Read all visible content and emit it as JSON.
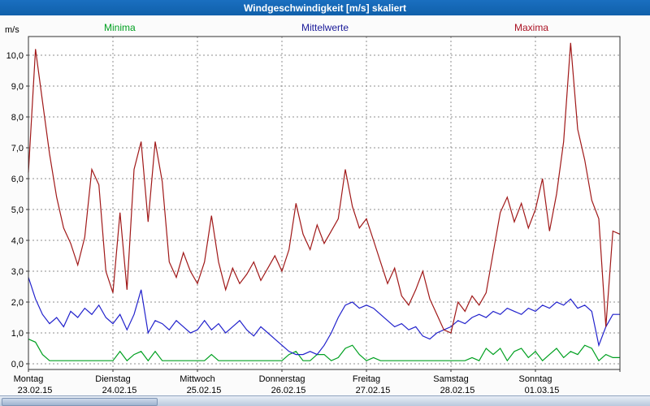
{
  "window": {
    "title": "Windgeschwindigkeit [m/s] skaliert"
  },
  "colors": {
    "titlebar": "#1060aa",
    "grid": "#8f8f8f",
    "plot_border": "#303030",
    "plot_background": "#ffffff",
    "minima": "#00a020",
    "mittelwerte": "#2222cc",
    "maxima": "#a01818",
    "legend_minima_text": "#00a020",
    "legend_mittelwerte_text": "#1a1a99",
    "legend_maxima_text": "#aa1122"
  },
  "axis": {
    "unit_label": "m/s",
    "y_ticks": [
      "0,0",
      "1,0",
      "2,0",
      "3,0",
      "4,0",
      "5,0",
      "6,0",
      "7,0",
      "8,0",
      "9,0",
      "10,0"
    ]
  },
  "chart_data": {
    "type": "line",
    "title": "Windgeschwindigkeit [m/s] skaliert",
    "xlabel": "",
    "ylabel": "m/s",
    "ylim": [
      0,
      10.6
    ],
    "grid": true,
    "legend_position": "top",
    "points_per_day": 12,
    "days": [
      {
        "name": "Montag",
        "date": "23.02.15"
      },
      {
        "name": "Dienstag",
        "date": "24.02.15"
      },
      {
        "name": "Mittwoch",
        "date": "25.02.15"
      },
      {
        "name": "Donnerstag",
        "date": "26.02.15"
      },
      {
        "name": "Freitag",
        "date": "27.02.15"
      },
      {
        "name": "Samstag",
        "date": "28.02.15"
      },
      {
        "name": "Sonntag",
        "date": "01.03.15"
      }
    ],
    "series": [
      {
        "name": "Minima",
        "color": "#00a020",
        "values": [
          0.8,
          0.7,
          0.3,
          0.1,
          0.1,
          0.1,
          0.1,
          0.1,
          0.1,
          0.1,
          0.1,
          0.1,
          0.1,
          0.4,
          0.1,
          0.3,
          0.4,
          0.1,
          0.4,
          0.1,
          0.1,
          0.1,
          0.1,
          0.1,
          0.1,
          0.1,
          0.3,
          0.1,
          0.1,
          0.1,
          0.1,
          0.1,
          0.1,
          0.1,
          0.1,
          0.1,
          0.1,
          0.3,
          0.4,
          0.1,
          0.1,
          0.3,
          0.3,
          0.1,
          0.2,
          0.5,
          0.6,
          0.3,
          0.1,
          0.2,
          0.1,
          0.1,
          0.1,
          0.1,
          0.1,
          0.1,
          0.1,
          0.1,
          0.1,
          0.1,
          0.1,
          0.1,
          0.1,
          0.2,
          0.1,
          0.5,
          0.3,
          0.5,
          0.1,
          0.4,
          0.5,
          0.2,
          0.4,
          0.1,
          0.3,
          0.5,
          0.2,
          0.4,
          0.3,
          0.6,
          0.5,
          0.1,
          0.3,
          0.2,
          0.2
        ]
      },
      {
        "name": "Mittelwerte",
        "color": "#2222cc",
        "values": [
          2.8,
          2.1,
          1.6,
          1.3,
          1.5,
          1.2,
          1.7,
          1.5,
          1.8,
          1.6,
          1.9,
          1.5,
          1.3,
          1.6,
          1.1,
          1.6,
          2.4,
          1.0,
          1.4,
          1.3,
          1.1,
          1.4,
          1.2,
          1.0,
          1.1,
          1.4,
          1.1,
          1.3,
          1.0,
          1.2,
          1.4,
          1.1,
          0.9,
          1.2,
          1.0,
          0.8,
          0.6,
          0.4,
          0.3,
          0.3,
          0.4,
          0.3,
          0.6,
          1.0,
          1.5,
          1.9,
          2.0,
          1.8,
          1.9,
          1.8,
          1.6,
          1.4,
          1.2,
          1.3,
          1.1,
          1.2,
          0.9,
          0.8,
          1.0,
          1.1,
          1.2,
          1.4,
          1.3,
          1.5,
          1.6,
          1.5,
          1.7,
          1.6,
          1.8,
          1.7,
          1.6,
          1.8,
          1.7,
          1.9,
          1.8,
          2.0,
          1.9,
          2.1,
          1.8,
          1.9,
          1.7,
          0.6,
          1.2,
          1.6,
          1.6
        ]
      },
      {
        "name": "Maxima",
        "color": "#a01818",
        "values": [
          6.2,
          10.2,
          8.5,
          6.8,
          5.4,
          4.4,
          3.9,
          3.2,
          4.1,
          6.3,
          5.8,
          3.0,
          2.3,
          4.9,
          2.4,
          6.3,
          7.2,
          4.6,
          7.2,
          5.9,
          3.3,
          2.8,
          3.6,
          3.0,
          2.6,
          3.3,
          4.8,
          3.3,
          2.4,
          3.1,
          2.6,
          2.9,
          3.3,
          2.7,
          3.1,
          3.5,
          3.0,
          3.7,
          5.2,
          4.2,
          3.7,
          4.5,
          3.9,
          4.3,
          4.7,
          6.3,
          5.1,
          4.4,
          4.7,
          4.0,
          3.3,
          2.6,
          3.1,
          2.2,
          1.9,
          2.4,
          3.0,
          2.1,
          1.6,
          1.1,
          1.0,
          2.0,
          1.7,
          2.2,
          1.9,
          2.3,
          3.6,
          4.9,
          5.4,
          4.6,
          5.2,
          4.4,
          5.0,
          6.0,
          4.3,
          5.5,
          7.2,
          10.4,
          7.6,
          6.6,
          5.3,
          4.7,
          1.2,
          4.3,
          4.2
        ]
      }
    ]
  }
}
